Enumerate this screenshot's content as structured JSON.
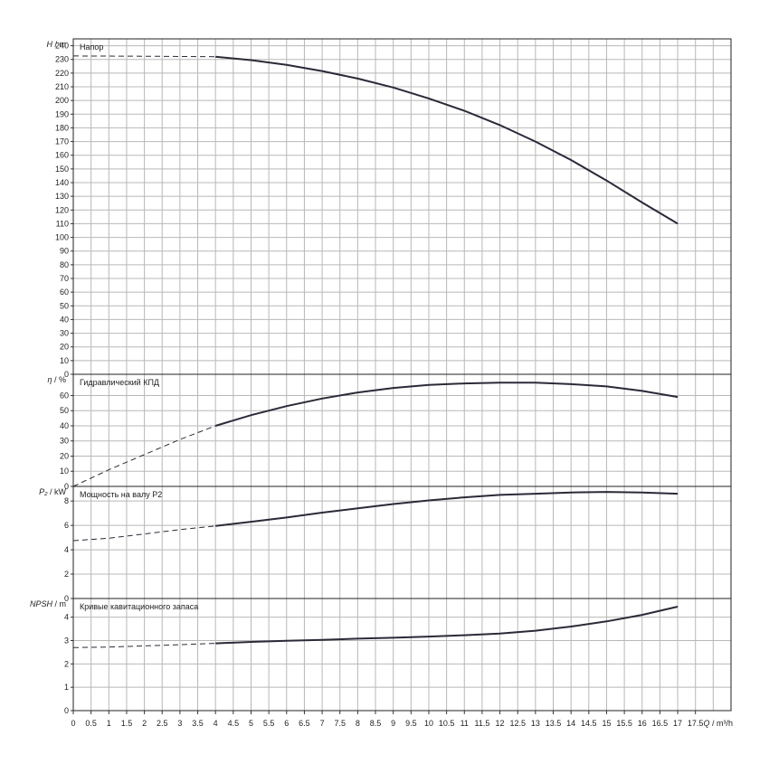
{
  "chart_data": {
    "type": "line",
    "x_axis": {
      "label_prefix": "Q",
      "label_unit": "m³/h",
      "min": 0,
      "max": 18.5,
      "tick_labels": [
        "0",
        "0.5",
        "1",
        "1.5",
        "2",
        "2.5",
        "3",
        "3.5",
        "4",
        "4.5",
        "5",
        "5.5",
        "6",
        "6.5",
        "7",
        "7.5",
        "8",
        "8.5",
        "9",
        "9.5",
        "10",
        "10.5",
        "11",
        "11.5",
        "12",
        "12.5",
        "13",
        "13.5",
        "14",
        "14.5",
        "15",
        "15.5",
        "16",
        "16.5",
        "17",
        "17.5"
      ],
      "tick_values": [
        0,
        0.5,
        1,
        1.5,
        2,
        2.5,
        3,
        3.5,
        4,
        4.5,
        5,
        5.5,
        6,
        6.5,
        7,
        7.5,
        8,
        8.5,
        9,
        9.5,
        10,
        10.5,
        11,
        11.5,
        12,
        12.5,
        13,
        13.5,
        14,
        14.5,
        15,
        15.5,
        16,
        16.5,
        17,
        17.5
      ]
    },
    "panels": [
      {
        "id": "head",
        "title": "Напор",
        "ylabel_sym": "H",
        "ylabel_unit": "m",
        "ylim": [
          0,
          245
        ],
        "y_ticks": [
          0,
          10,
          20,
          30,
          40,
          50,
          60,
          70,
          80,
          90,
          100,
          110,
          120,
          130,
          140,
          150,
          160,
          170,
          180,
          190,
          200,
          210,
          220,
          230,
          240
        ],
        "dashed": {
          "x": [
            0,
            2,
            4
          ],
          "y": [
            232.5,
            232.3,
            232
          ]
        },
        "solid": {
          "x": [
            4,
            5,
            6,
            7,
            8,
            9,
            10,
            11,
            12,
            13,
            14,
            15,
            16,
            17
          ],
          "y": [
            232,
            229.5,
            226,
            221.5,
            216,
            209.5,
            201.5,
            192.5,
            182,
            170,
            156.5,
            141.5,
            125.5,
            110
          ]
        }
      },
      {
        "id": "efficiency",
        "title": "Гидравлический КПД",
        "ylabel_sym": "η",
        "ylabel_unit": "%",
        "ylim": [
          0,
          74
        ],
        "y_ticks": [
          0,
          10,
          20,
          30,
          40,
          50,
          60
        ],
        "dashed": {
          "x": [
            0,
            1,
            2,
            3,
            4
          ],
          "y": [
            0,
            11,
            21,
            31,
            40
          ]
        },
        "solid": {
          "x": [
            4,
            5,
            6,
            7,
            8,
            9,
            10,
            11,
            12,
            13,
            14,
            15,
            16,
            17
          ],
          "y": [
            40,
            47,
            53,
            58,
            62,
            65,
            67,
            68,
            68.5,
            68.5,
            67.5,
            66,
            63,
            59
          ]
        }
      },
      {
        "id": "power",
        "title": "Мощность на валу P2",
        "ylabel_sym": "P₂",
        "ylabel_unit": "kW",
        "ylim": [
          0,
          9.2
        ],
        "y_ticks": [
          0,
          2,
          4,
          6,
          8
        ],
        "dashed": {
          "x": [
            0,
            1,
            2,
            3,
            4
          ],
          "y": [
            4.75,
            4.95,
            5.3,
            5.65,
            5.95
          ]
        },
        "solid": {
          "x": [
            4,
            5,
            6,
            7,
            8,
            9,
            10,
            11,
            12,
            13,
            14,
            15,
            16,
            17
          ],
          "y": [
            5.95,
            6.3,
            6.65,
            7.05,
            7.4,
            7.75,
            8.05,
            8.3,
            8.5,
            8.6,
            8.7,
            8.75,
            8.7,
            8.6
          ]
        }
      },
      {
        "id": "npsh",
        "title": "Кривые кавитационного запаса",
        "ylabel_sym": "NPSH",
        "ylabel_unit": "m",
        "ylim": [
          0,
          4.8
        ],
        "y_ticks": [
          0,
          1,
          2,
          3,
          4
        ],
        "dashed": {
          "x": [
            0,
            1,
            2,
            3,
            4
          ],
          "y": [
            2.7,
            2.72,
            2.77,
            2.82,
            2.88
          ]
        },
        "solid": {
          "x": [
            4,
            5,
            6,
            7,
            8,
            9,
            10,
            11,
            12,
            13,
            14,
            15,
            16,
            17
          ],
          "y": [
            2.88,
            2.94,
            2.99,
            3.03,
            3.08,
            3.12,
            3.17,
            3.23,
            3.3,
            3.42,
            3.6,
            3.82,
            4.1,
            4.45
          ]
        }
      }
    ]
  }
}
